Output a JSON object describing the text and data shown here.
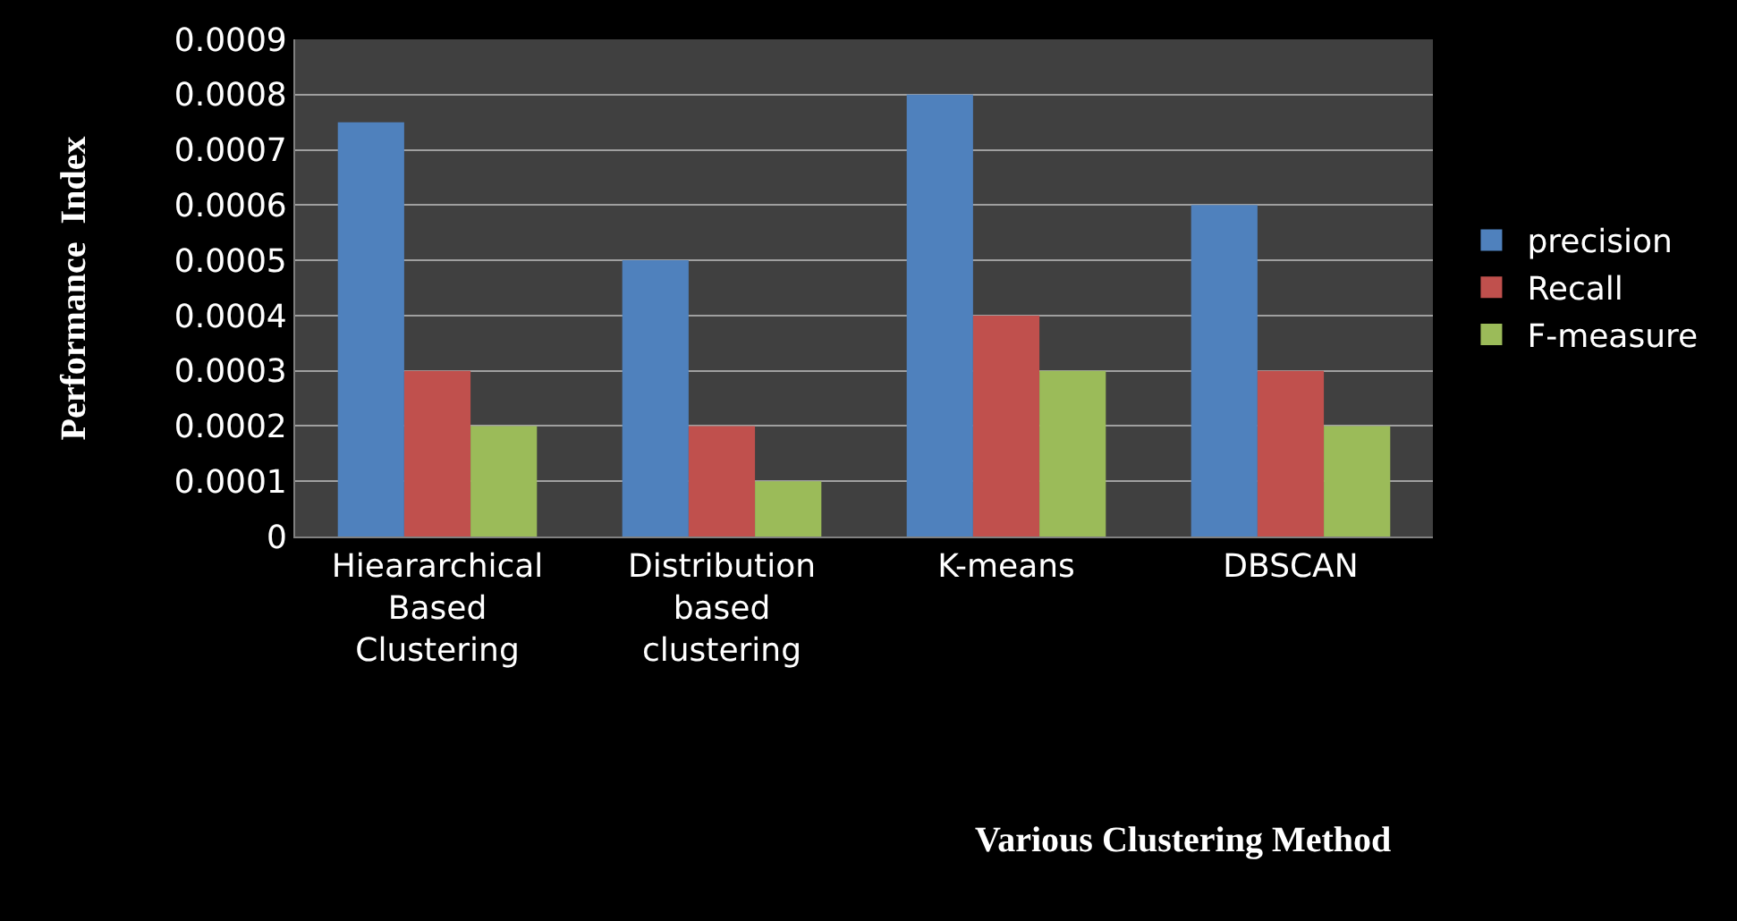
{
  "chart_data": {
    "type": "bar",
    "xlabel": "Various Clustering Method",
    "ylabel": "Performance  Index",
    "categories": [
      "Hieararchical Based Clustering",
      "Distribution based clustering",
      "K-means",
      "DBSCAN"
    ],
    "series": [
      {
        "name": "precision",
        "color": "#4f81bd",
        "values": [
          0.00075,
          0.0005,
          0.0008,
          0.0006
        ]
      },
      {
        "name": "Recall",
        "color": "#c0504d",
        "values": [
          0.0003,
          0.0002,
          0.0004,
          0.0003
        ]
      },
      {
        "name": "F-measure",
        "color": "#9bbb59",
        "values": [
          0.0002,
          0.0001,
          0.0003,
          0.0002
        ]
      }
    ],
    "ylim": [
      0,
      0.0009
    ],
    "yticks": [
      0,
      0.0001,
      0.0002,
      0.0003,
      0.0004,
      0.0005,
      0.0006,
      0.0007,
      0.0008,
      0.0009
    ],
    "grid": "y",
    "legend": "right"
  }
}
